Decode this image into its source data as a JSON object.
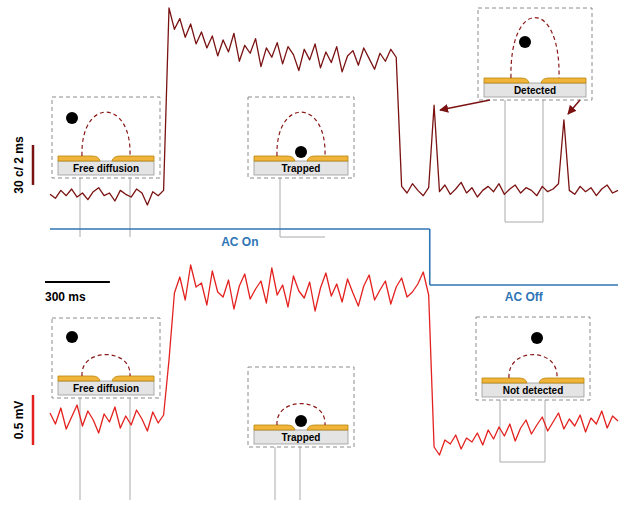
{
  "chart_data": [
    {
      "type": "line",
      "tick_labels": false,
      "x": [
        0,
        25,
        50,
        75,
        100,
        125,
        150,
        175,
        200,
        225,
        250,
        275,
        300,
        325,
        350,
        375,
        400,
        425,
        450,
        475,
        500,
        525,
        550,
        575,
        600,
        625,
        650,
        675,
        700,
        725,
        750,
        775,
        800,
        825,
        850,
        875,
        900,
        925,
        950,
        975,
        1000,
        1025,
        1050,
        1075,
        1100,
        1125,
        1150,
        1175,
        1200,
        1225,
        1250,
        1275,
        1300,
        1325,
        1350,
        1375,
        1400,
        1425,
        1450,
        1475,
        1500,
        1525,
        1550,
        1575,
        1600,
        1625,
        1650,
        1675,
        1700,
        1725,
        1750,
        1775,
        1800,
        1825,
        1850,
        1875,
        1900,
        1925,
        1950,
        1975,
        2000,
        2025,
        2050,
        2075,
        2100,
        2125,
        2150,
        2175,
        2200,
        2225,
        2250,
        2275,
        2300,
        2325,
        2350,
        2375,
        2400,
        2425,
        2450,
        2475,
        2500,
        2525,
        2550,
        2575,
        2600,
        2625
      ],
      "series": [
        {
          "color": "#7a1212",
          "values": [
            8,
            5,
            11,
            7,
            12,
            6,
            9,
            4,
            10,
            13,
            7,
            9,
            3,
            11,
            8,
            6,
            12,
            9,
            0,
            10,
            7,
            11,
            148,
            132,
            140,
            126,
            136,
            121,
            130,
            118,
            127,
            112,
            124,
            115,
            129,
            108,
            120,
            114,
            125,
            104,
            118,
            111,
            122,
            106,
            119,
            113,
            101,
            117,
            109,
            121,
            103,
            115,
            107,
            119,
            100,
            112,
            116,
            105,
            118,
            110,
            102,
            114,
            108,
            117,
            111,
            14,
            9,
            16,
            11,
            7,
            13,
            75,
            10,
            15,
            8,
            12,
            17,
            9,
            13,
            6,
            11,
            14,
            10,
            16,
            8,
            12,
            15,
            9,
            13,
            11,
            7,
            14,
            10,
            12,
            16,
            64,
            11,
            8,
            14,
            10,
            13,
            7,
            12,
            15,
            9,
            11
          ]
        }
      ],
      "scale_bar": {
        "label": "30 c/ 2 ms",
        "value": 30
      },
      "time_bar": {
        "label": "300 ms",
        "value": 300
      },
      "annotations": [
        {
          "text": "AC On",
          "x_start": 0,
          "x_end": 1755
        },
        {
          "text": "AC Off",
          "x_start": 1755,
          "x_end": 2625
        }
      ],
      "insets": [
        "Free diffusion",
        "Trapped",
        "Detected"
      ]
    },
    {
      "type": "line",
      "tick_labels": false,
      "x": [
        0,
        25,
        50,
        75,
        100,
        125,
        150,
        175,
        200,
        225,
        250,
        275,
        300,
        325,
        350,
        375,
        400,
        425,
        450,
        475,
        500,
        525,
        550,
        575,
        600,
        625,
        650,
        675,
        700,
        725,
        750,
        775,
        800,
        825,
        850,
        875,
        900,
        925,
        950,
        975,
        1000,
        1025,
        1050,
        1075,
        1100,
        1125,
        1150,
        1175,
        1200,
        1225,
        1250,
        1275,
        1300,
        1325,
        1350,
        1375,
        1400,
        1425,
        1450,
        1475,
        1500,
        1525,
        1550,
        1575,
        1600,
        1625,
        1650,
        1675,
        1700,
        1725,
        1750,
        1775,
        1800,
        1825,
        1850,
        1875,
        1900,
        1925,
        1950,
        1975,
        2000,
        2025,
        2050,
        2075,
        2100,
        2125,
        2150,
        2175,
        2200,
        2225,
        2250,
        2275,
        2300,
        2325,
        2350,
        2375,
        2400,
        2425,
        2450,
        2475,
        2500,
        2525,
        2550,
        2575,
        2600,
        2625
      ],
      "series": [
        {
          "color": "#e3221f",
          "values": [
            0.42,
            0.31,
            0.47,
            0.26,
            0.38,
            0.5,
            0.29,
            0.44,
            0.35,
            0.22,
            0.41,
            0.33,
            0.48,
            0.27,
            0.39,
            0.3,
            0.45,
            0.36,
            0.24,
            0.43,
            0.32,
            0.4,
            0.95,
            1.62,
            1.78,
            1.55,
            1.9,
            1.68,
            1.72,
            1.5,
            1.84,
            1.63,
            1.58,
            1.75,
            1.46,
            1.69,
            1.81,
            1.56,
            1.66,
            1.74,
            1.52,
            1.87,
            1.6,
            1.7,
            1.48,
            1.79,
            1.64,
            1.57,
            1.73,
            1.44,
            1.67,
            1.82,
            1.59,
            1.71,
            1.53,
            1.76,
            1.62,
            1.49,
            1.69,
            1.8,
            1.55,
            1.65,
            1.74,
            1.51,
            1.68,
            1.77,
            1.58,
            1.63,
            1.71,
            1.83,
            1.6,
            0.08,
            0,
            0.15,
            0.11,
            0.2,
            0.06,
            0.17,
            0.13,
            0.22,
            0.1,
            0.25,
            0.16,
            0.28,
            0.19,
            0.31,
            0.14,
            0.27,
            0.35,
            0.21,
            0.3,
            0.38,
            0.24,
            0.33,
            0.42,
            0.26,
            0.36,
            0.29,
            0.4,
            0.23,
            0.37,
            0.31,
            0.44,
            0.27,
            0.39,
            0.34
          ]
        }
      ],
      "scale_bar": {
        "label": "0.5 mV",
        "value": 0.5
      },
      "insets": [
        "Free diffusion",
        "Trapped",
        "Not detected"
      ]
    }
  ]
}
